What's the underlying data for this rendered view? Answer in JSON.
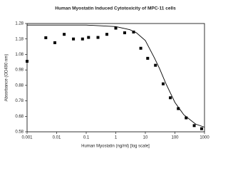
{
  "chart_data": {
    "type": "scatter",
    "title": "Human Myostatin Induced Cytotoxicity of MPC-11 cells",
    "x_label": "Human Myostatin (ng/ml) [log scale]",
    "y_label": "Absorbance (OD490 nm)",
    "x_log": true,
    "xlim": [
      0.001,
      1000
    ],
    "xticks": [
      0.001,
      0.01,
      0.1,
      1,
      10,
      100,
      1000
    ],
    "ylim": [
      0.58,
      1.28
    ],
    "yticks": [
      0.58,
      0.68,
      0.78,
      0.88,
      0.98,
      1.08,
      1.18,
      1.28
    ],
    "color": "#000000",
    "series": [
      {
        "type": "scatter",
        "x": [
          0.001,
          0.0043,
          0.0087,
          0.018,
          0.037,
          0.075,
          0.12,
          0.25,
          0.5,
          1,
          2,
          4,
          7,
          12,
          22,
          40,
          70,
          130,
          240,
          450,
          800
        ],
        "values": [
          1.036,
          1.188,
          1.156,
          1.21,
          1.18,
          1.18,
          1.19,
          1.19,
          1.21,
          1.25,
          1.22,
          1.225,
          1.12,
          1.055,
          1.01,
          0.89,
          0.8,
          0.73,
          0.67,
          0.62,
          0.6
        ]
      },
      {
        "type": "line",
        "x": [
          0.001,
          0.01,
          0.1,
          1,
          3,
          5,
          10,
          20,
          30,
          50,
          100,
          200,
          500,
          1000
        ],
        "values": [
          1.27,
          1.27,
          1.27,
          1.26,
          1.24,
          1.22,
          1.17,
          1.06,
          0.99,
          0.89,
          0.77,
          0.69,
          0.63,
          0.61
        ]
      }
    ]
  }
}
